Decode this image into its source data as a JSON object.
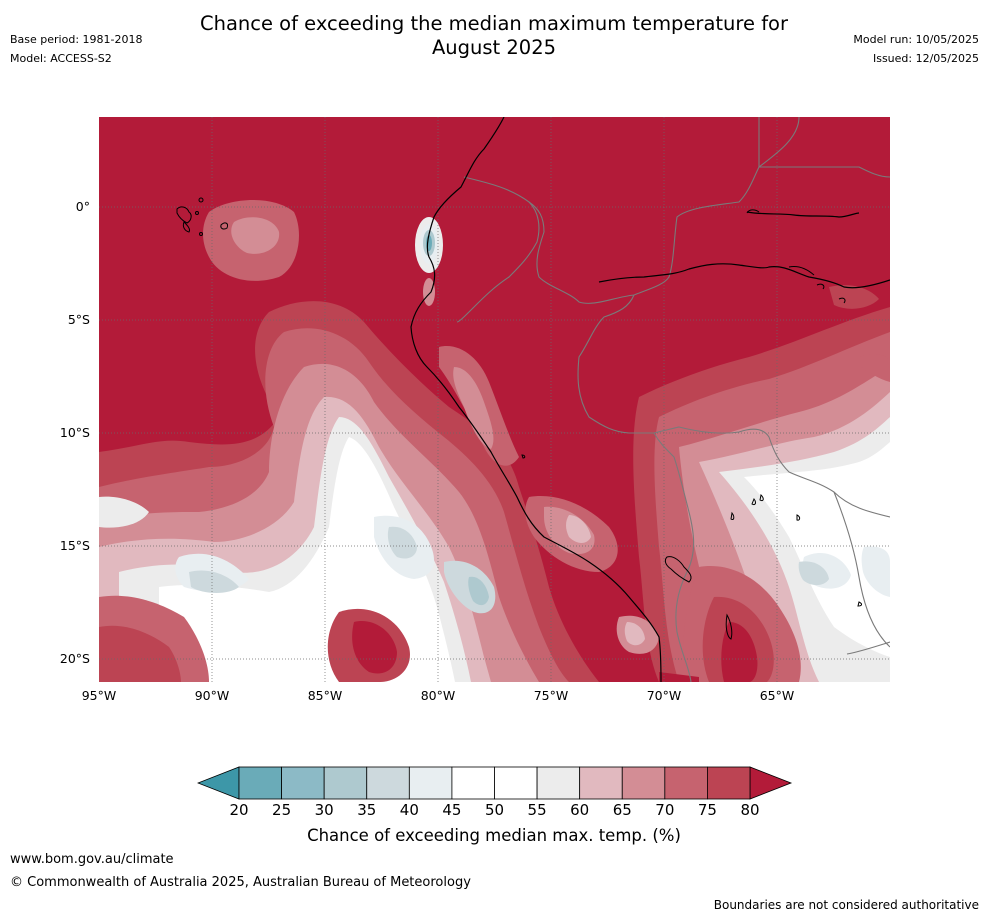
{
  "title_line1": "Chance of exceeding the median maximum temperature for",
  "title_line2": "August 2025",
  "meta": {
    "base_period": "Base period: 1981-2018",
    "model": "Model: ACCESS-S2",
    "model_run": "Model run: 10/05/2025",
    "issued": "Issued: 12/05/2025"
  },
  "axes": {
    "lat_labels": [
      "0°",
      "5°S",
      "10°S",
      "15°S",
      "20°S"
    ],
    "lon_labels": [
      "95°W",
      "90°W",
      "85°W",
      "80°W",
      "75°W",
      "70°W",
      "65°W"
    ],
    "lat_range": [
      4,
      -21
    ],
    "lon_range": [
      -95,
      -60
    ]
  },
  "colorbar": {
    "label": "Chance of exceeding median max. temp. (%)",
    "ticks": [
      "20",
      "25",
      "30",
      "35",
      "40",
      "45",
      "50",
      "55",
      "60",
      "65",
      "70",
      "75",
      "80"
    ],
    "colors": [
      "#6aabb8",
      "#8cbac6",
      "#aec9cf",
      "#cdd9dd",
      "#e8eef1",
      "#ffffff",
      "#ffffff",
      "#ececec",
      "#e1b9bf",
      "#d38d95",
      "#c6636f",
      "#bc4453"
    ],
    "low_color": "#3d97a8",
    "high_color": "#b31b39"
  },
  "footer": {
    "url": "www.bom.gov.au/climate",
    "copyright": "© Commonwealth of Australia 2025, Australian Bureau of Meteorology",
    "disclaimer": "Boundaries are not considered authoritative"
  }
}
